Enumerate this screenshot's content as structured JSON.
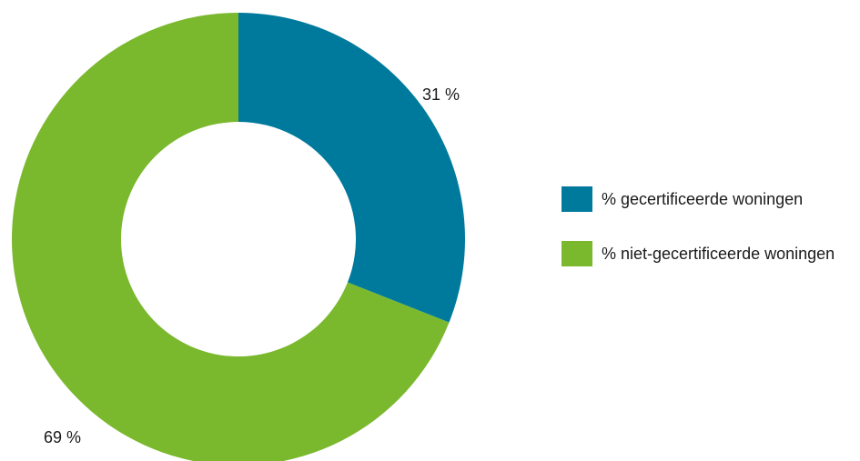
{
  "chart_data": {
    "type": "pie",
    "variant": "donut",
    "title": "",
    "slices": [
      {
        "label": "% gecertificeerde woningen",
        "value": 31,
        "data_label": "31 %",
        "color": "#007a9c"
      },
      {
        "label": "% niet-gecertificeerde woningen",
        "value": 69,
        "data_label": "69 %",
        "color": "#7ab82d"
      }
    ],
    "legend_position": "right"
  }
}
